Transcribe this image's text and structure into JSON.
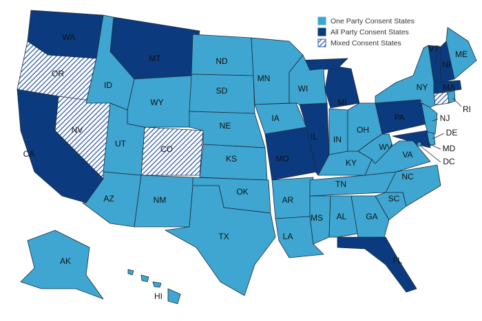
{
  "legend": [
    {
      "label": "One Party Consent States",
      "color": "#3ea6d1",
      "hatched": false,
      "states": [
        "ID",
        "UT",
        "AZ",
        "NM",
        "WY",
        "ND",
        "SD",
        "NE",
        "KS",
        "OK",
        "TX",
        "MN",
        "IA",
        "AR",
        "LA",
        "WI",
        "MS",
        "AL",
        "GA",
        "SC",
        "NC",
        "TN",
        "KY",
        "IN",
        "OH",
        "WV",
        "VA",
        "NY",
        "NJ",
        "ME",
        "RI",
        "DE",
        "DC",
        "AK",
        "HI"
      ]
    },
    {
      "label": "All Party Consent States",
      "color": "#0b3b7e",
      "hatched": false,
      "states": [
        "WA",
        "MT",
        "CA",
        "IL",
        "MO",
        "MI",
        "PA",
        "MD",
        "FL",
        "VT",
        "NH",
        "MA"
      ]
    },
    {
      "label": "Mixed Consent States",
      "color": "#2f5aa6",
      "hatched": true,
      "states": [
        "OR",
        "NV",
        "CO"
      ]
    }
  ]
}
